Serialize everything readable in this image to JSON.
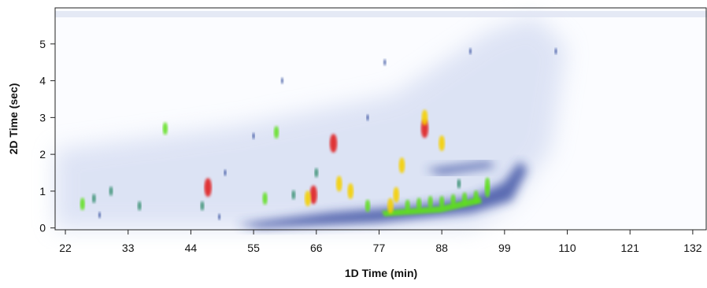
{
  "chart_data": {
    "type": "contour",
    "xlabel": "1D Time (min)",
    "ylabel": "2D Time (sec)",
    "xlim": [
      20.2,
      134.5
    ],
    "ylim": [
      -0.05,
      5.98
    ],
    "xticks": [
      22,
      33,
      44,
      55,
      66,
      77,
      88,
      99,
      110,
      121,
      132
    ],
    "yticks": [
      0,
      1,
      2,
      3,
      4,
      5
    ],
    "colormap": [
      "#1f3a93",
      "#2e8b6a",
      "#5fe01a",
      "#f5d000",
      "#e02020"
    ],
    "x": [
      65.5,
      64.5,
      85,
      85,
      69,
      81,
      88,
      39.5,
      47,
      59,
      70,
      72,
      75,
      82,
      84,
      86,
      88,
      90,
      92,
      94,
      96,
      96,
      27,
      25,
      30,
      35,
      46,
      50,
      55,
      60,
      75,
      78,
      93,
      108,
      62,
      66,
      79,
      80,
      91,
      57,
      28,
      49
    ],
    "values": [
      0.9,
      0.8,
      2.7,
      3,
      2.3,
      1.7,
      2.3,
      2.7,
      1.1,
      2.6,
      1.2,
      1.0,
      0.6,
      0.6,
      0.65,
      0.7,
      0.7,
      0.75,
      0.8,
      0.85,
      1.2,
      1.0,
      0.8,
      0.65,
      1.0,
      0.6,
      0.6,
      1.5,
      2.5,
      4,
      3,
      4.5,
      4.8,
      4.8,
      0.9,
      1.5,
      0.6,
      0.9,
      1.2,
      0.8,
      0.35,
      0.3
    ],
    "levels": [
      4,
      3,
      4,
      3,
      4,
      3,
      3,
      2,
      4,
      2,
      3,
      3,
      2,
      2,
      2,
      2,
      2,
      2,
      2,
      2,
      2,
      2,
      1,
      2,
      1,
      1,
      1,
      0,
      0,
      0,
      0,
      0,
      0,
      0,
      1,
      1,
      3,
      3,
      1,
      2,
      0,
      0
    ]
  }
}
